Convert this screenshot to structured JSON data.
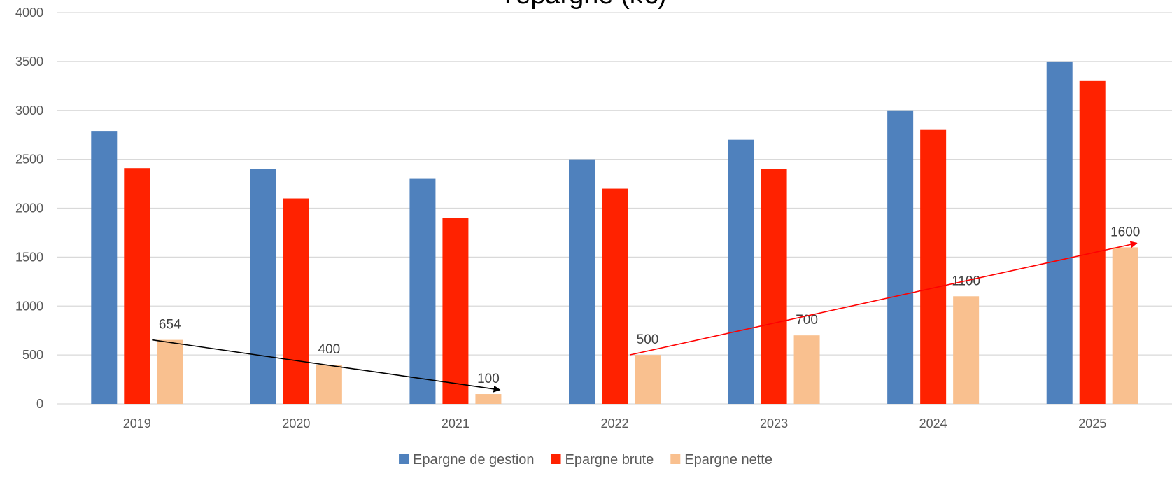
{
  "chart_data": {
    "type": "bar",
    "title": "l'épargne (k€)",
    "categories": [
      "2019",
      "2020",
      "2021",
      "2022",
      "2023",
      "2024",
      "2025"
    ],
    "series": [
      {
        "name": "Epargne de gestion",
        "color": "#4f81bd",
        "values": [
          2790,
          2400,
          2300,
          2500,
          2700,
          3000,
          3500
        ]
      },
      {
        "name": "Epargne brute",
        "color": "#ff2200",
        "values": [
          2410,
          2100,
          1900,
          2200,
          2400,
          2800,
          3300
        ]
      },
      {
        "name": "Epargne nette",
        "color": "#f9c08f",
        "values": [
          654,
          400,
          100,
          500,
          700,
          1100,
          1600
        ]
      }
    ],
    "data_labels": {
      "series": "Epargne nette",
      "labels": [
        "654",
        "400",
        "100",
        "500",
        "700",
        "1100",
        "1600"
      ]
    },
    "ylim": [
      0,
      4000
    ],
    "yticks": [
      "0",
      "500",
      "1000",
      "1500",
      "2000",
      "2500",
      "3000",
      "3500",
      "4000"
    ],
    "grid": true,
    "legend": "bottom",
    "trend_arrows": [
      {
        "color": "#000000",
        "from": {
          "category": "2019",
          "value": 654
        },
        "to": {
          "category": "2021",
          "value": 100
        }
      },
      {
        "color": "#ff0000",
        "from": {
          "category": "2022",
          "value": 500
        },
        "to": {
          "category": "2025",
          "value": 1600
        }
      }
    ]
  }
}
